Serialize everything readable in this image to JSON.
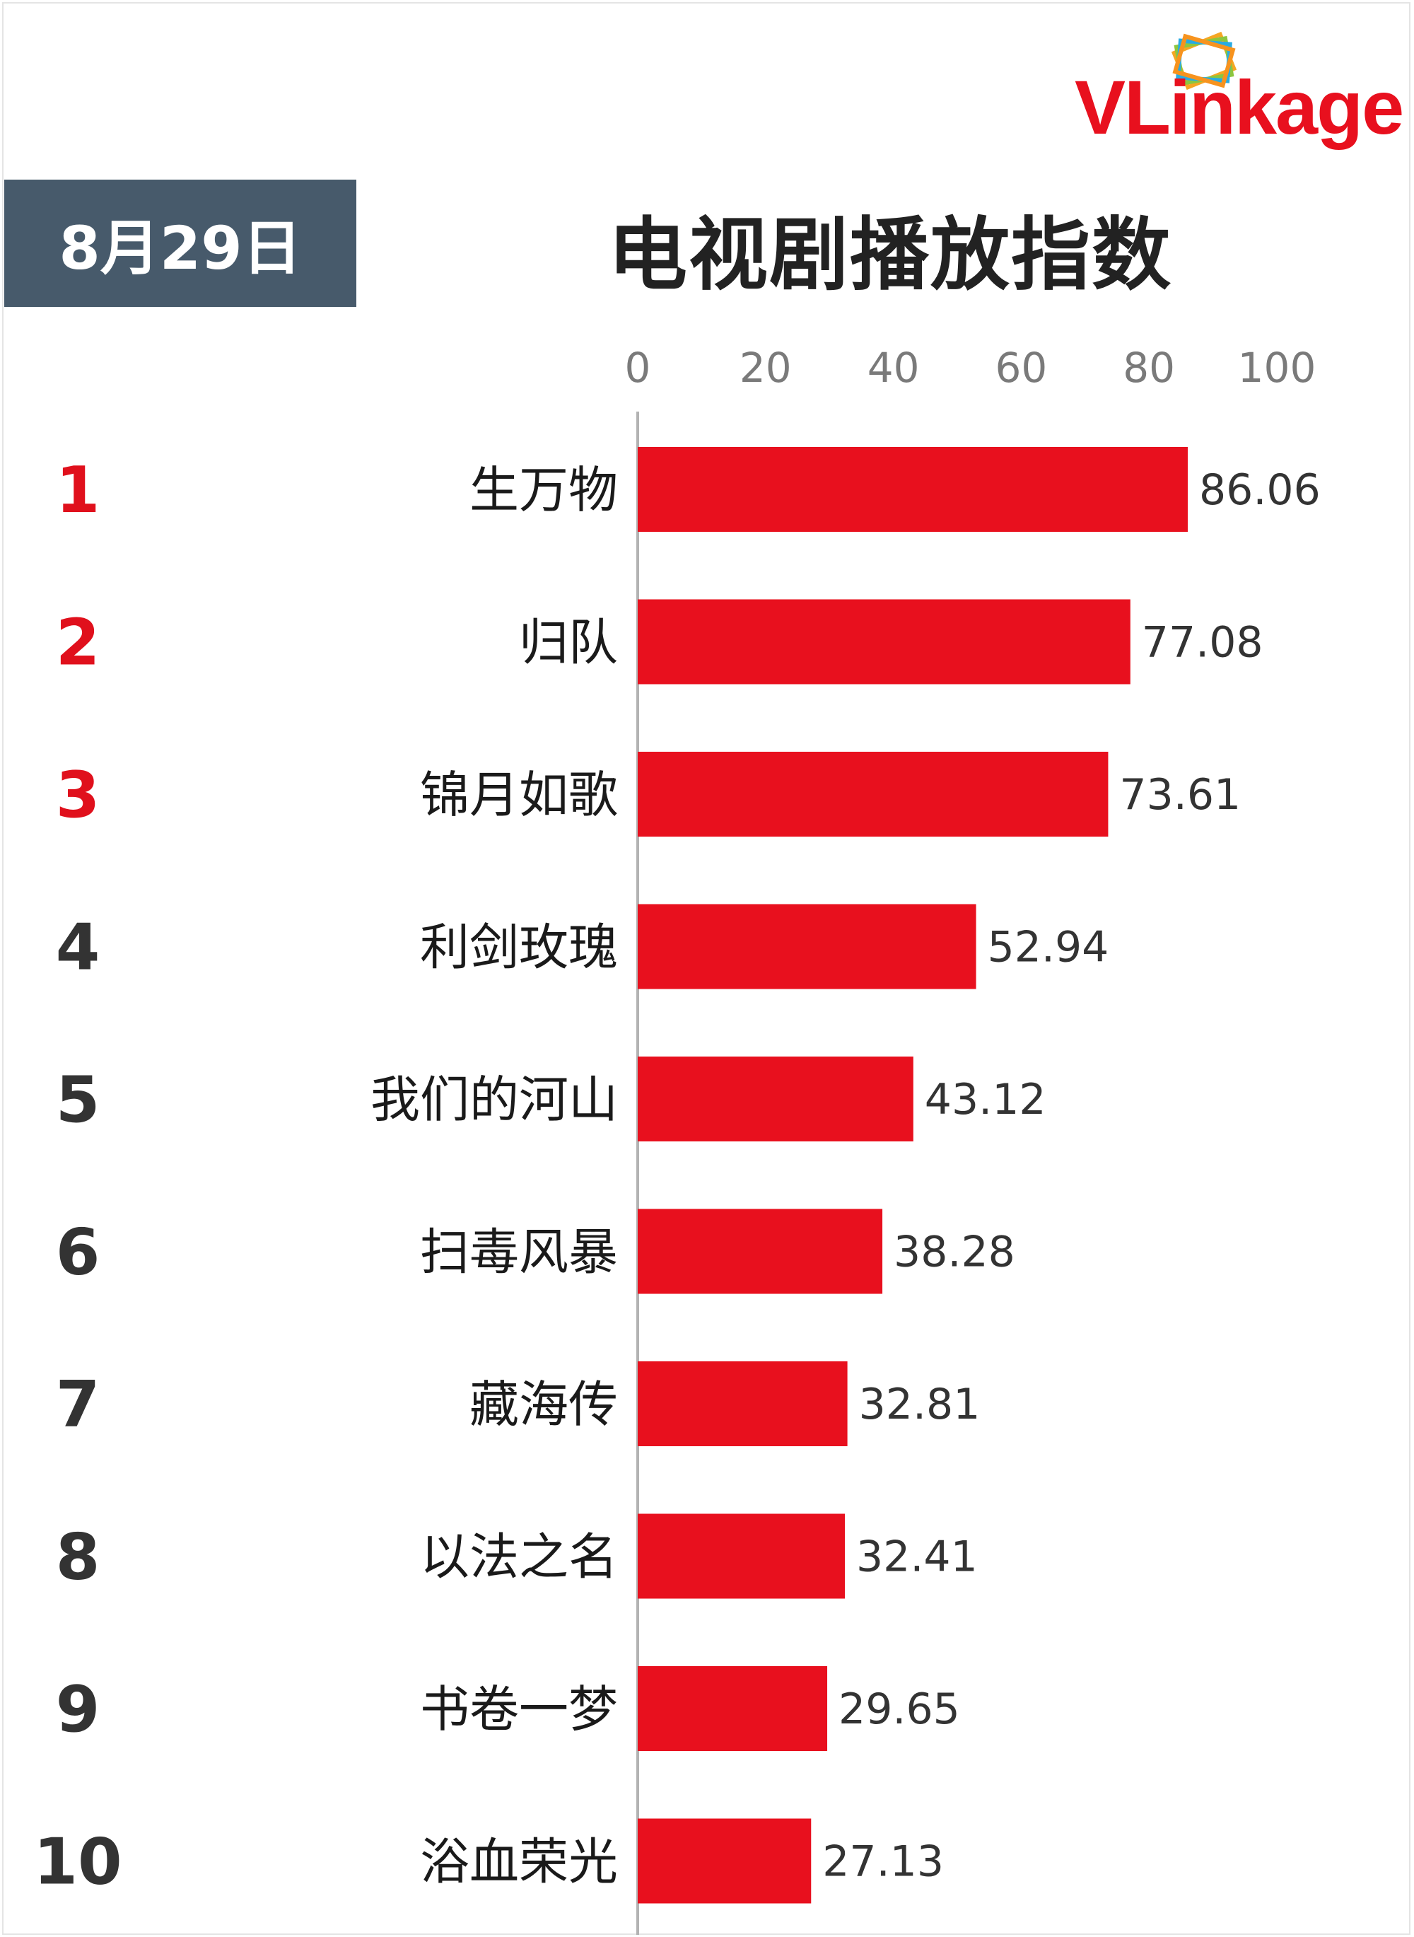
{
  "header": {
    "date_label": "8月29日",
    "title": "电视剧播放指数",
    "logo_text": "VLinkage",
    "logo_icon": "stacked-cards-icon"
  },
  "colors": {
    "bar": "#e8101e",
    "rank_top": "#e0101c",
    "rank_other": "#333333",
    "badge_bg": "#475a6b"
  },
  "chart_data": {
    "type": "bar",
    "orientation": "horizontal",
    "title": "电视剧播放指数",
    "xlim": [
      0,
      100
    ],
    "xticks": [
      0,
      20,
      40,
      60,
      80,
      100
    ],
    "grid": false,
    "categories": [
      "生万物",
      "归队",
      "锦月如歌",
      "利剑玫瑰",
      "我们的河山",
      "扫毒风暴",
      "藏海传",
      "以法之名",
      "书卷一梦",
      "浴血荣光"
    ],
    "ranks": [
      1,
      2,
      3,
      4,
      5,
      6,
      7,
      8,
      9,
      10
    ],
    "values": [
      86.06,
      77.08,
      73.61,
      52.94,
      43.12,
      38.28,
      32.81,
      32.41,
      29.65,
      27.13
    ]
  }
}
